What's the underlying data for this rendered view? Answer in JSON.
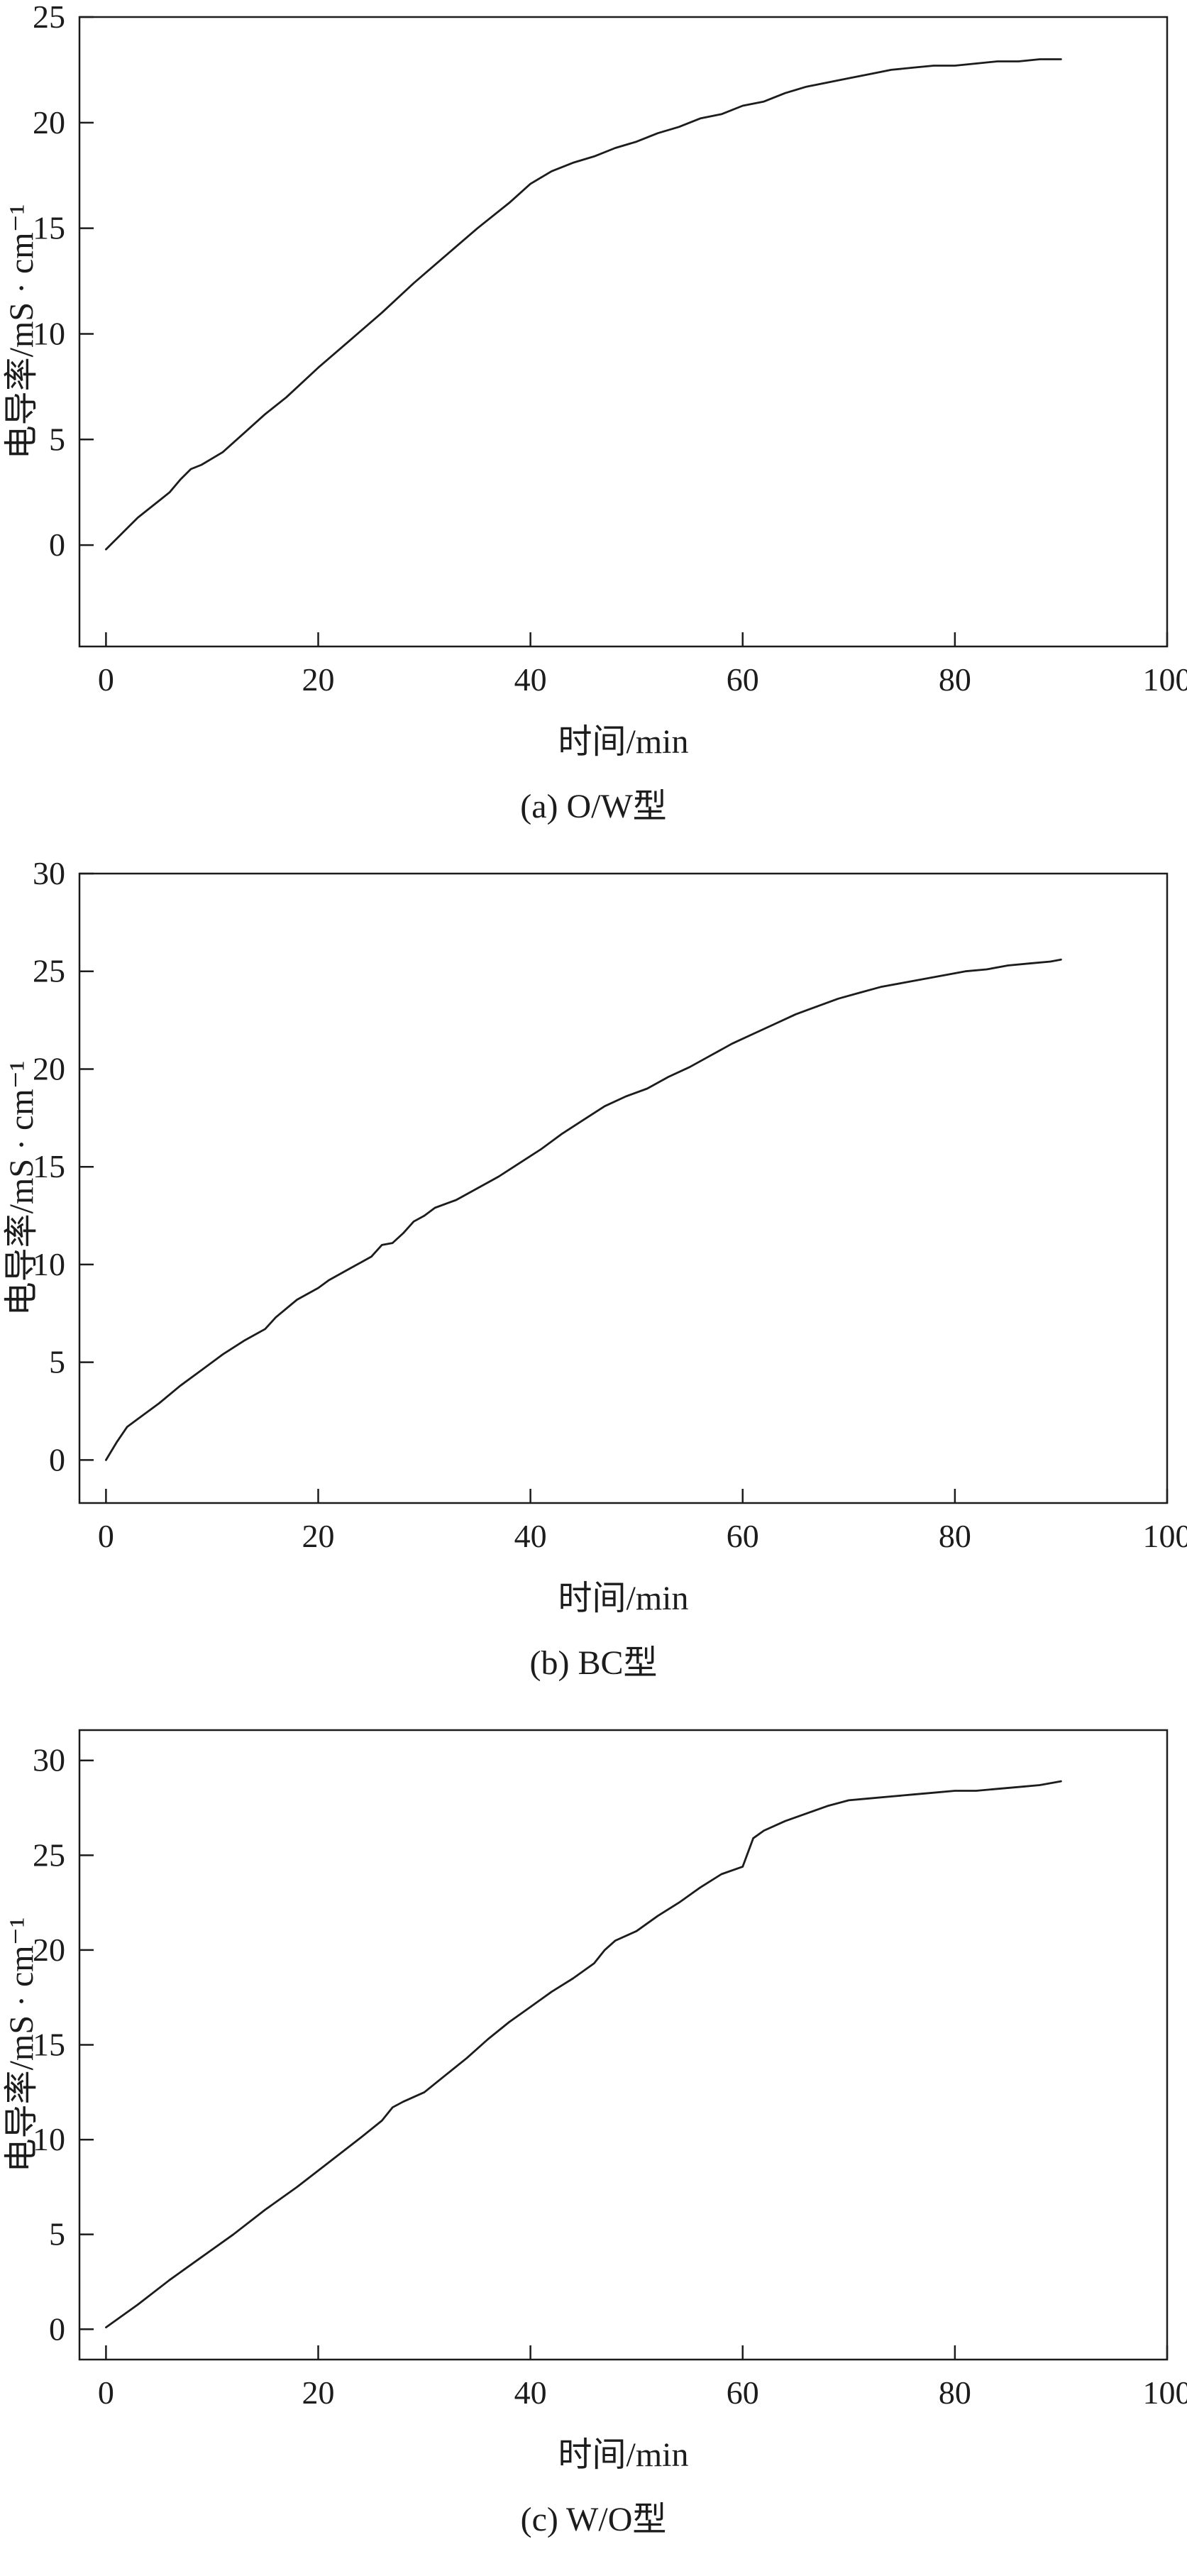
{
  "style": {
    "background": "#ffffff",
    "axis_color": "#1c1c1c",
    "line_color": "#1c1c1c"
  },
  "chart_data": [
    {
      "type": "line",
      "caption": "(a) O/W型",
      "xlabel": "时间/min",
      "ylabel": "电导率/mS · cm⁻¹",
      "xlim": [
        -2.5,
        100
      ],
      "ylim": [
        -4.8,
        25
      ],
      "xticks": [
        0,
        20,
        40,
        60,
        80,
        100
      ],
      "yticks": [
        0,
        5,
        10,
        15,
        20,
        25
      ],
      "grid": false,
      "legend": "none",
      "points": [
        [
          0,
          -0.2
        ],
        [
          1,
          0.3
        ],
        [
          2,
          0.8
        ],
        [
          3,
          1.3
        ],
        [
          4,
          1.7
        ],
        [
          5,
          2.1
        ],
        [
          6,
          2.5
        ],
        [
          7,
          3.1
        ],
        [
          8,
          3.6
        ],
        [
          9,
          3.8
        ],
        [
          10,
          4.1
        ],
        [
          11,
          4.4
        ],
        [
          13,
          5.3
        ],
        [
          15,
          6.2
        ],
        [
          17,
          7.0
        ],
        [
          20,
          8.4
        ],
        [
          23,
          9.7
        ],
        [
          26,
          11.0
        ],
        [
          29,
          12.4
        ],
        [
          32,
          13.7
        ],
        [
          35,
          15.0
        ],
        [
          38,
          16.2
        ],
        [
          40,
          17.1
        ],
        [
          42,
          17.7
        ],
        [
          44,
          18.1
        ],
        [
          46,
          18.4
        ],
        [
          48,
          18.8
        ],
        [
          50,
          19.1
        ],
        [
          52,
          19.5
        ],
        [
          54,
          19.8
        ],
        [
          56,
          20.2
        ],
        [
          58,
          20.4
        ],
        [
          60,
          20.8
        ],
        [
          62,
          21.0
        ],
        [
          64,
          21.4
        ],
        [
          66,
          21.7
        ],
        [
          68,
          21.9
        ],
        [
          70,
          22.1
        ],
        [
          72,
          22.3
        ],
        [
          74,
          22.5
        ],
        [
          76,
          22.6
        ],
        [
          78,
          22.7
        ],
        [
          80,
          22.7
        ],
        [
          82,
          22.8
        ],
        [
          84,
          22.9
        ],
        [
          86,
          22.9
        ],
        [
          88,
          23.0
        ],
        [
          90,
          23.0
        ]
      ]
    },
    {
      "type": "line",
      "caption": "(b) BC型",
      "xlabel": "时间/min",
      "ylabel": "电导率/mS · cm⁻¹",
      "xlim": [
        -2.5,
        100
      ],
      "ylim": [
        -2.2,
        30
      ],
      "xticks": [
        0,
        20,
        40,
        60,
        80,
        100
      ],
      "yticks": [
        0,
        5,
        10,
        15,
        20,
        25,
        30
      ],
      "grid": false,
      "legend": "none",
      "points": [
        [
          0,
          0
        ],
        [
          1,
          0.9
        ],
        [
          2,
          1.7
        ],
        [
          3,
          2.1
        ],
        [
          5,
          2.9
        ],
        [
          7,
          3.8
        ],
        [
          9,
          4.6
        ],
        [
          11,
          5.4
        ],
        [
          13,
          6.1
        ],
        [
          15,
          6.7
        ],
        [
          16,
          7.3
        ],
        [
          18,
          8.2
        ],
        [
          20,
          8.8
        ],
        [
          21,
          9.2
        ],
        [
          23,
          9.8
        ],
        [
          25,
          10.4
        ],
        [
          26,
          11.0
        ],
        [
          27,
          11.1
        ],
        [
          28,
          11.6
        ],
        [
          29,
          12.2
        ],
        [
          30,
          12.5
        ],
        [
          31,
          12.9
        ],
        [
          33,
          13.3
        ],
        [
          35,
          13.9
        ],
        [
          37,
          14.5
        ],
        [
          39,
          15.2
        ],
        [
          41,
          15.9
        ],
        [
          43,
          16.7
        ],
        [
          45,
          17.4
        ],
        [
          47,
          18.1
        ],
        [
          49,
          18.6
        ],
        [
          51,
          19.0
        ],
        [
          53,
          19.6
        ],
        [
          55,
          20.1
        ],
        [
          57,
          20.7
        ],
        [
          59,
          21.3
        ],
        [
          61,
          21.8
        ],
        [
          63,
          22.3
        ],
        [
          65,
          22.8
        ],
        [
          67,
          23.2
        ],
        [
          69,
          23.6
        ],
        [
          71,
          23.9
        ],
        [
          73,
          24.2
        ],
        [
          75,
          24.4
        ],
        [
          77,
          24.6
        ],
        [
          79,
          24.8
        ],
        [
          81,
          25.0
        ],
        [
          83,
          25.1
        ],
        [
          85,
          25.3
        ],
        [
          87,
          25.4
        ],
        [
          89,
          25.5
        ],
        [
          90,
          25.6
        ]
      ]
    },
    {
      "type": "line",
      "caption": "(c) W/O型",
      "xlabel": "时间/min",
      "ylabel": "电导率/mS · cm⁻¹",
      "xlim": [
        -2.5,
        100
      ],
      "ylim": [
        -1.6,
        31.6
      ],
      "xticks": [
        0,
        20,
        40,
        60,
        80,
        100
      ],
      "yticks": [
        0,
        5,
        10,
        15,
        20,
        25,
        30
      ],
      "grid": false,
      "legend": "none",
      "points": [
        [
          0,
          0.1
        ],
        [
          3,
          1.3
        ],
        [
          6,
          2.6
        ],
        [
          9,
          3.8
        ],
        [
          12,
          5.0
        ],
        [
          15,
          6.3
        ],
        [
          18,
          7.5
        ],
        [
          21,
          8.8
        ],
        [
          24,
          10.1
        ],
        [
          26,
          11.0
        ],
        [
          27,
          11.7
        ],
        [
          28,
          12.0
        ],
        [
          30,
          12.5
        ],
        [
          32,
          13.4
        ],
        [
          34,
          14.3
        ],
        [
          36,
          15.3
        ],
        [
          38,
          16.2
        ],
        [
          40,
          17.0
        ],
        [
          42,
          17.8
        ],
        [
          44,
          18.5
        ],
        [
          46,
          19.3
        ],
        [
          47,
          20.0
        ],
        [
          48,
          20.5
        ],
        [
          50,
          21.0
        ],
        [
          52,
          21.8
        ],
        [
          54,
          22.5
        ],
        [
          56,
          23.3
        ],
        [
          58,
          24.0
        ],
        [
          60,
          24.4
        ],
        [
          61,
          25.9
        ],
        [
          62,
          26.3
        ],
        [
          64,
          26.8
        ],
        [
          66,
          27.2
        ],
        [
          68,
          27.6
        ],
        [
          70,
          27.9
        ],
        [
          72,
          28.0
        ],
        [
          74,
          28.1
        ],
        [
          76,
          28.2
        ],
        [
          78,
          28.3
        ],
        [
          80,
          28.4
        ],
        [
          82,
          28.4
        ],
        [
          84,
          28.5
        ],
        [
          86,
          28.6
        ],
        [
          88,
          28.7
        ],
        [
          90,
          28.9
        ]
      ]
    }
  ]
}
